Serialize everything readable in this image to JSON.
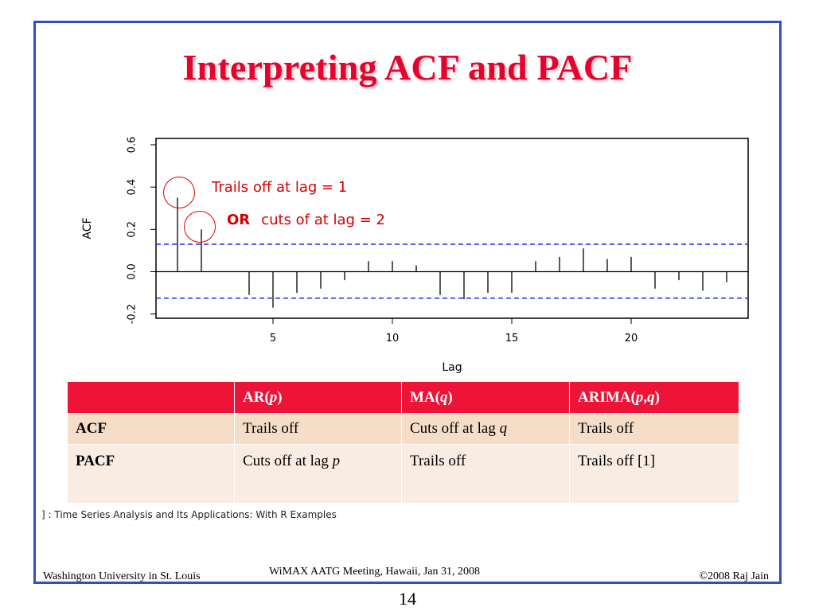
{
  "slide": {
    "title": "Interpreting ACF and PACF",
    "reference": "] : Time Series Analysis and Its Applications: With R Examples",
    "page_number": "14"
  },
  "footer": {
    "left": "Washington University in St. Louis",
    "center": "WiMAX AATG Meeting, Hawaii, Jan 31, 2008",
    "right": "©2008 Raj Jain"
  },
  "annotations": {
    "trails": "Trails off at lag = 1",
    "or_label": "OR",
    "cuts": "cuts of at lag = 2"
  },
  "colors": {
    "title": "#e8002e",
    "annotation": "#d40000",
    "confidence_line": "#1f2fd6",
    "table_header": "#ee1437",
    "table_row1": "#f6ddc8",
    "table_row2": "#f9ece3"
  },
  "chart_data": {
    "type": "bar",
    "style": "stem",
    "xlabel": "Lag",
    "ylabel": "ACF",
    "xlim": [
      0.1,
      24.9
    ],
    "ylim": [
      -0.22,
      0.63
    ],
    "x_ticks": [
      5,
      10,
      15,
      20
    ],
    "y_ticks": [
      -0.2,
      0.0,
      0.2,
      0.4,
      0.6
    ],
    "y_tick_labels": [
      "-0.2",
      "0.0",
      "0.2",
      "0.4",
      "0.6"
    ],
    "confidence_bounds": [
      0.13,
      -0.125
    ],
    "grid": false,
    "lags": [
      1,
      2,
      3,
      4,
      5,
      6,
      7,
      8,
      9,
      10,
      11,
      12,
      13,
      14,
      15,
      16,
      17,
      18,
      19,
      20,
      21,
      22,
      23,
      24
    ],
    "values": [
      0.35,
      0.2,
      0.0,
      -0.11,
      -0.17,
      -0.1,
      -0.08,
      -0.04,
      0.05,
      0.05,
      0.03,
      -0.11,
      -0.13,
      -0.1,
      -0.1,
      0.05,
      0.07,
      0.11,
      0.06,
      0.07,
      -0.08,
      -0.04,
      -0.09,
      -0.05
    ]
  },
  "table": {
    "headers": [
      "",
      "AR(p)",
      "MA(q)",
      "ARIMA(p,q)"
    ],
    "rows": [
      [
        "ACF",
        "Trails off",
        "Cuts off at lag q",
        "Trails off"
      ],
      [
        "PACF",
        "Cuts off at lag p",
        "Trails off",
        "Trails off [1]"
      ]
    ]
  }
}
